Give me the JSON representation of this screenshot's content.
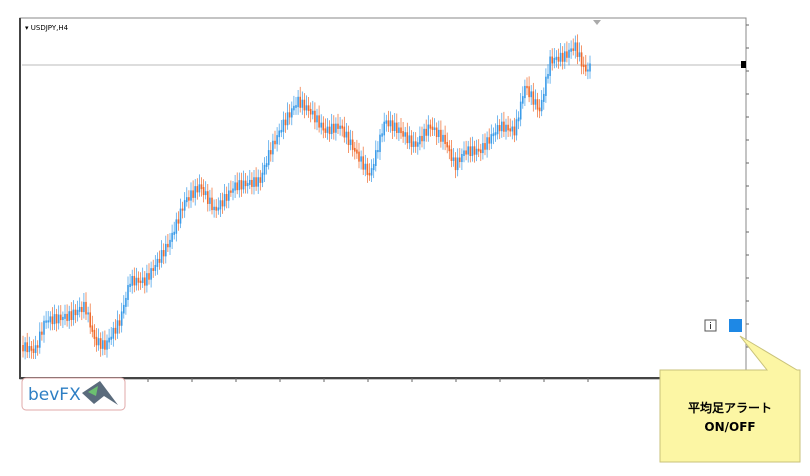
{
  "chart_window": {
    "symbol": "USDJPY,H4"
  },
  "logo": {
    "text": "bevFX"
  },
  "buttons": {
    "info": "i"
  },
  "callout": {
    "line1": "平均足アラート",
    "line2": "ON/OFF"
  }
}
